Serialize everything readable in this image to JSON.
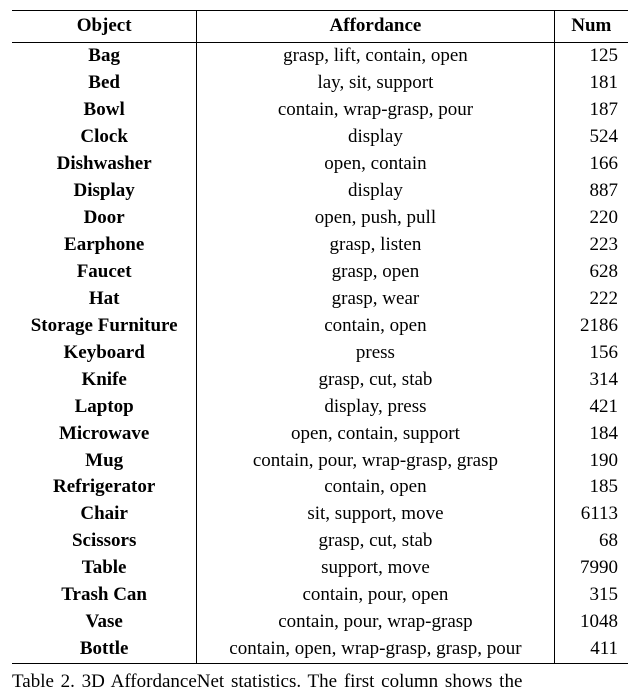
{
  "table": {
    "columns": {
      "object": "Object",
      "affordance": "Affordance",
      "num": "Num"
    },
    "rows": [
      {
        "object": "Bag",
        "affordance": "grasp, lift, contain, open",
        "num": "125"
      },
      {
        "object": "Bed",
        "affordance": "lay, sit, support",
        "num": "181"
      },
      {
        "object": "Bowl",
        "affordance": "contain, wrap-grasp, pour",
        "num": "187"
      },
      {
        "object": "Clock",
        "affordance": "display",
        "num": "524"
      },
      {
        "object": "Dishwasher",
        "affordance": "open, contain",
        "num": "166"
      },
      {
        "object": "Display",
        "affordance": "display",
        "num": "887"
      },
      {
        "object": "Door",
        "affordance": "open, push, pull",
        "num": "220"
      },
      {
        "object": "Earphone",
        "affordance": "grasp, listen",
        "num": "223"
      },
      {
        "object": "Faucet",
        "affordance": "grasp, open",
        "num": "628"
      },
      {
        "object": "Hat",
        "affordance": "grasp, wear",
        "num": "222"
      },
      {
        "object": "Storage Furniture",
        "affordance": "contain, open",
        "num": "2186"
      },
      {
        "object": "Keyboard",
        "affordance": "press",
        "num": "156"
      },
      {
        "object": "Knife",
        "affordance": "grasp, cut, stab",
        "num": "314"
      },
      {
        "object": "Laptop",
        "affordance": "display, press",
        "num": "421"
      },
      {
        "object": "Microwave",
        "affordance": "open, contain, support",
        "num": "184"
      },
      {
        "object": "Mug",
        "affordance": "contain, pour, wrap-grasp, grasp",
        "num": "190"
      },
      {
        "object": "Refrigerator",
        "affordance": "contain, open",
        "num": "185"
      },
      {
        "object": "Chair",
        "affordance": "sit, support, move",
        "num": "6113"
      },
      {
        "object": "Scissors",
        "affordance": "grasp, cut, stab",
        "num": "68"
      },
      {
        "object": "Table",
        "affordance": "support, move",
        "num": "7990"
      },
      {
        "object": "Trash Can",
        "affordance": "contain, pour, open",
        "num": "315"
      },
      {
        "object": "Vase",
        "affordance": "contain, pour, wrap-grasp",
        "num": "1048"
      },
      {
        "object": "Bottle",
        "affordance": "contain, open, wrap-grasp, grasp, pour",
        "num": "411"
      }
    ]
  },
  "caption": "Table 2. 3D AffordanceNet statistics. The first column shows the"
}
